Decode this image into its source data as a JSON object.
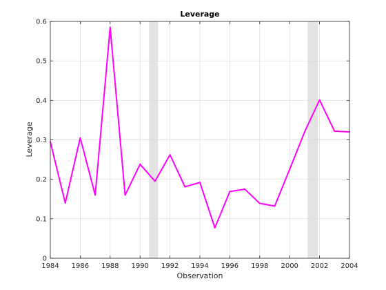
{
  "chart_data": {
    "type": "line",
    "title": "Leverage",
    "xlabel": "Observation",
    "ylabel": "Leverage",
    "xlim": [
      1984,
      2004
    ],
    "ylim": [
      0,
      0.6
    ],
    "xticks": [
      1984,
      1986,
      1988,
      1990,
      1992,
      1994,
      1996,
      1998,
      2000,
      2002,
      2004
    ],
    "yticks": [
      0,
      0.1,
      0.2,
      0.3,
      0.4,
      0.5,
      0.6
    ],
    "xtick_labels": [
      "1984",
      "1986",
      "1988",
      "1990",
      "1992",
      "1994",
      "1996",
      "1998",
      "2000",
      "2002",
      "2004"
    ],
    "ytick_labels": [
      "0",
      "0.1",
      "0.2",
      "0.3",
      "0.4",
      "0.5",
      "0.6"
    ],
    "grid": true,
    "shaded_regions": [
      [
        1990.6,
        1991.2
      ],
      [
        2001.2,
        2001.9
      ]
    ],
    "series": [
      {
        "color": "#ff00ff",
        "x": [
          1984,
          1985,
          1986,
          1987,
          1988,
          1989,
          1990,
          1991,
          1992,
          1993,
          1994,
          1995,
          1996,
          1997,
          1998,
          1999,
          2000,
          2001,
          2002,
          2003,
          2004
        ],
        "y": [
          0.295,
          0.14,
          0.305,
          0.16,
          0.585,
          0.16,
          0.238,
          0.195,
          0.262,
          0.181,
          0.192,
          0.077,
          0.169,
          0.175,
          0.139,
          0.132,
          0.225,
          0.32,
          0.401,
          0.322,
          0.32
        ]
      }
    ]
  }
}
